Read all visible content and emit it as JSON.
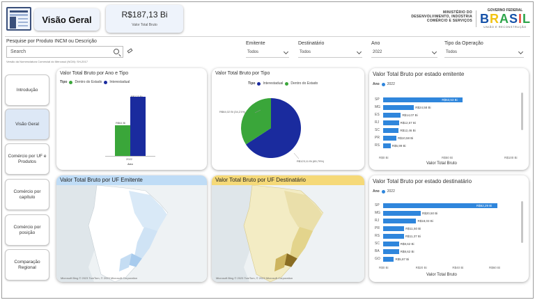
{
  "header": {
    "logo_icon": "report-document-icon",
    "page_title": "Visão Geral",
    "kpi_value": "R$187,13 Bi",
    "kpi_label": "Valor Total Bruto",
    "ministry_lines": [
      "MINISTÉRIO DO",
      "DESENVOLVIMENTO, INDÚSTRIA",
      "COMÉRCIO E SERVIÇOS"
    ],
    "gov_top": "GOVERNO FEDERAL",
    "gov_brand": [
      "B",
      "R",
      "A",
      "S",
      "I",
      "L"
    ],
    "gov_sub": "UNIÃO E RECONSTRUÇÃO",
    "brand_colors": [
      "#1551a8",
      "#f2c313",
      "#2da44a",
      "#1551a8",
      "#e74c3c",
      "#2da44a"
    ]
  },
  "filters": {
    "search_label": "Pesquise por Produto INCM ou Descrição",
    "search_placeholder": "Search",
    "search_note": "Versão da Nomenclatura Comercial do Mercosul (NCM): SH-2017",
    "emitente_label": "Emitente",
    "emitente_value": "Todos",
    "destinatario_label": "Destinatário",
    "destinatario_value": "Todos",
    "ano_label": "Ano",
    "ano_value": "2022",
    "tipo_label": "Tipo da Operação",
    "tipo_value": "Todos"
  },
  "nav": [
    {
      "label": "Introdução",
      "active": false
    },
    {
      "label": "Visão Geral",
      "active": true
    },
    {
      "label": "Comércio por UF e Produtos",
      "active": false
    },
    {
      "label": "Comércio por capítulo",
      "active": false
    },
    {
      "label": "Comércio por posição",
      "active": false
    },
    {
      "label": "Comparação Regional",
      "active": false
    }
  ],
  "colors": {
    "dentro": "#3aa63a",
    "inter": "#1a2b9e",
    "hbar": "#2f86dc",
    "map_emit_head": "#bfdcf6",
    "map_dest_head": "#f5d978"
  },
  "ano_tipo": {
    "title": "Valor Total Bruto por Ano e Tipo",
    "legend_title": "Tipo",
    "legend": [
      "Dentro do Estado",
      "Interestadual"
    ],
    "dentro_label": "R$64 Bi",
    "inter_label": "R$123 Bi",
    "x_tick": "2022",
    "x_axis": "Ano"
  },
  "por_tipo": {
    "title": "Valor Total Bruto por Tipo",
    "legend_title": "Tipo",
    "legend": [
      "Interestadual",
      "Dentro do Estado"
    ],
    "label_dentro": "R$64,02 Bi (34,21%)",
    "label_inter": "R$123,11 Bi (65,79%)"
  },
  "emitente": {
    "title": "Valor Total Bruto por estado emitente",
    "legend_title": "Ano",
    "legend_year": "2022",
    "rows": [
      {
        "uf": "SP",
        "label": "R$63,53 Bi"
      },
      {
        "uf": "MG",
        "label": "R$24,58 Bi"
      },
      {
        "uf": "ES",
        "label": "R$14,07 Bi"
      },
      {
        "uf": "RJ",
        "label": "R$12,57 Bi"
      },
      {
        "uf": "SC",
        "label": "R$12,46 Bi"
      },
      {
        "uf": "PR",
        "label": "R$10,58 Bi"
      },
      {
        "uf": "RS",
        "label": "R$5,99 Bi"
      }
    ],
    "ticks": [
      "R$0 Bi",
      "R$50 Bi",
      "R$100 Bi"
    ],
    "x_axis": "Valor Total Bruto"
  },
  "destinatario": {
    "title": "Valor Total Bruto por estado destinatário",
    "legend_title": "Ano",
    "legend_year": "2022",
    "rows": [
      {
        "uf": "SP",
        "label": "R$62,29 Bi"
      },
      {
        "uf": "MG",
        "label": "R$20,50 Bi"
      },
      {
        "uf": "RJ",
        "label": "R$18,03 Bi"
      },
      {
        "uf": "PR",
        "label": "R$11,50 Bi"
      },
      {
        "uf": "RS",
        "label": "R$11,37 Bi"
      },
      {
        "uf": "SC",
        "label": "R$8,62 Bi"
      },
      {
        "uf": "BA",
        "label": "R$8,62 Bi"
      },
      {
        "uf": "GO",
        "label": "R$5,87 Bi"
      }
    ],
    "ticks": [
      "R$0 Bi",
      "R$20 Bi",
      "R$40 Bi",
      "R$60 Bi"
    ],
    "x_axis": "Valor Total Bruto"
  },
  "map_emitente": {
    "title": "Valor Total Bruto por UF Emitente",
    "foot": "Microsoft Bing   © 2023 TomTom, © 2023 Microsoft Corporation"
  },
  "map_destinatario": {
    "title": "Valor Total Bruto por UF Destinatário",
    "foot": "Microsoft Bing   © 2023 TomTom, © 2023 Microsoft Corporation"
  },
  "chart_data": [
    {
      "type": "bar",
      "title": "Valor Total Bruto por Ano e Tipo",
      "categories": [
        "2022"
      ],
      "series": [
        {
          "name": "Dentro do Estado",
          "values": [
            64
          ]
        },
        {
          "name": "Interestadual",
          "values": [
            123
          ]
        }
      ],
      "xlabel": "Ano",
      "ylabel": ""
    },
    {
      "type": "pie",
      "title": "Valor Total Bruto por Tipo",
      "categories": [
        "Interestadual",
        "Dentro do Estado"
      ],
      "values": [
        123.11,
        64.02
      ]
    },
    {
      "type": "bar",
      "title": "Valor Total Bruto por estado emitente",
      "categories": [
        "SP",
        "MG",
        "ES",
        "RJ",
        "SC",
        "PR",
        "RS"
      ],
      "values": [
        63.53,
        24.58,
        14.07,
        12.57,
        12.46,
        10.58,
        5.99
      ],
      "xlabel": "Valor Total Bruto",
      "xlim": [
        0,
        100
      ]
    },
    {
      "type": "bar",
      "title": "Valor Total Bruto por estado destinatário",
      "categories": [
        "SP",
        "MG",
        "RJ",
        "PR",
        "RS",
        "SC",
        "BA",
        "GO"
      ],
      "values": [
        62.29,
        20.5,
        18.03,
        11.5,
        11.37,
        8.62,
        8.62,
        5.87
      ],
      "xlabel": "Valor Total Bruto",
      "xlim": [
        0,
        60
      ]
    }
  ]
}
